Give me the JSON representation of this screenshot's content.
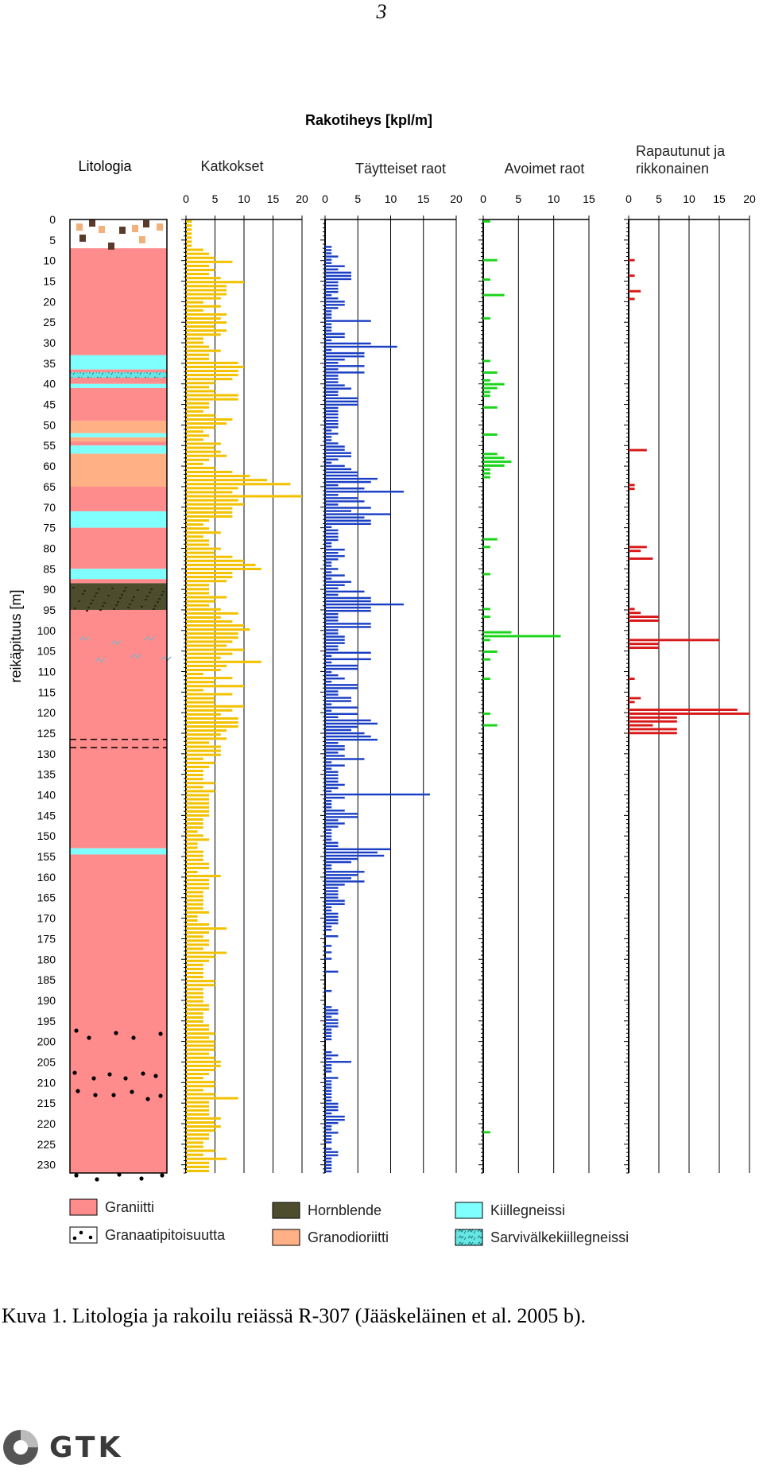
{
  "page_number": "3",
  "caption": "Kuva 1. Litologia ja rakoilu reiässä R-307 (Jääskeläinen et al. 2005 b).",
  "logo_text": "GTK",
  "chart_data": {
    "type": "bar",
    "title": "Rakotiheys [kpl/m]",
    "ylabel": "reikäpituus [m]",
    "ylim": [
      0,
      232
    ],
    "depth_ticks": [
      0,
      5,
      10,
      15,
      20,
      25,
      30,
      35,
      40,
      45,
      50,
      55,
      60,
      65,
      70,
      75,
      80,
      85,
      90,
      95,
      100,
      105,
      110,
      115,
      120,
      125,
      130,
      135,
      140,
      145,
      150,
      155,
      160,
      165,
      170,
      175,
      180,
      185,
      190,
      195,
      200,
      205,
      210,
      215,
      220,
      225,
      230
    ],
    "lithology": {
      "title": "Litologia",
      "layers": [
        {
          "type": "overburden",
          "top": 0,
          "bottom": 7
        },
        {
          "type": "Graniitti",
          "top": 7,
          "bottom": 33
        },
        {
          "type": "Kiillegneissi",
          "top": 33,
          "bottom": 36.5
        },
        {
          "type": "Graniitti",
          "top": 36.5,
          "bottom": 37.2
        },
        {
          "type": "Sarvivälkekiillegneissi",
          "top": 37.2,
          "bottom": 38.5
        },
        {
          "type": "Graniitti",
          "top": 38.5,
          "bottom": 40
        },
        {
          "type": "Kiillegneissi",
          "top": 40,
          "bottom": 41
        },
        {
          "type": "Graniitti",
          "top": 41,
          "bottom": 49
        },
        {
          "type": "Granodioriitti",
          "top": 49,
          "bottom": 52
        },
        {
          "type": "Kiillegneissi",
          "top": 52,
          "bottom": 53
        },
        {
          "type": "Granodioriitti",
          "top": 53,
          "bottom": 54
        },
        {
          "type": "Graniitti",
          "top": 54,
          "bottom": 55
        },
        {
          "type": "Kiillegneissi",
          "top": 55,
          "bottom": 57
        },
        {
          "type": "Granodioriitti",
          "top": 57,
          "bottom": 65
        },
        {
          "type": "Graniitti",
          "top": 65,
          "bottom": 71
        },
        {
          "type": "Kiillegneissi",
          "top": 71,
          "bottom": 75
        },
        {
          "type": "Graniitti",
          "top": 75,
          "bottom": 85
        },
        {
          "type": "Kiillegneissi",
          "top": 85,
          "bottom": 87.5
        },
        {
          "type": "Graniitti",
          "top": 87.5,
          "bottom": 88.5
        },
        {
          "type": "Hornblende",
          "top": 88.5,
          "bottom": 95
        },
        {
          "type": "Graniitti",
          "top": 95,
          "bottom": 153
        },
        {
          "type": "Kiillegneissi",
          "top": 153,
          "bottom": 154.5
        },
        {
          "type": "Graniitti",
          "top": 154.5,
          "bottom": 232
        }
      ]
    },
    "legend": [
      {
        "key": "Graniitti",
        "label": "Graniitti",
        "color": "#ff8c8c"
      },
      {
        "key": "Granaatti",
        "label": "Granaatipitoisuutta",
        "color": "#ffffff"
      },
      {
        "key": "Hornblende",
        "label": "Hornblende",
        "color": "#4d4d2e"
      },
      {
        "key": "Granodioriitti",
        "label": "Granodioriitti",
        "color": "#ffb084"
      },
      {
        "key": "Kiillegneissi",
        "label": "Kiillegneissi",
        "color": "#80ffff"
      },
      {
        "key": "Sarvivälkekiillegneissi",
        "label": "Sarvivälkekiillegneissi",
        "color": "#66e5e5"
      }
    ],
    "series": [
      {
        "name": "Katkokset",
        "color": "#f2c200",
        "xlim": [
          0,
          20
        ],
        "ticks": [
          0,
          5,
          10,
          15,
          20
        ],
        "values": [
          1,
          1,
          1,
          1,
          1,
          1,
          1,
          3,
          4,
          5,
          8,
          4,
          5,
          4,
          6,
          10,
          7,
          7,
          7,
          6,
          3,
          6,
          3,
          7,
          6,
          7,
          5,
          7,
          6,
          3,
          3,
          4,
          6,
          4,
          4,
          9,
          10,
          9,
          9,
          8,
          5,
          4,
          5,
          9,
          9,
          4,
          4,
          3,
          5,
          8,
          7,
          5,
          3,
          4,
          3,
          6,
          5,
          6,
          7,
          4,
          3,
          5,
          8,
          11,
          14,
          18,
          9,
          8,
          20,
          9,
          10,
          8,
          8,
          8,
          4,
          3,
          4,
          6,
          3,
          4,
          4,
          6,
          5,
          8,
          10,
          12,
          13,
          8,
          8,
          7,
          4,
          4,
          4,
          7,
          5,
          4,
          6,
          9,
          6,
          8,
          10,
          11,
          9,
          9,
          8,
          7,
          10,
          8,
          6,
          13,
          7,
          6,
          3,
          8,
          5,
          10,
          3,
          8,
          5,
          5,
          10,
          8,
          6,
          9,
          9,
          9,
          7,
          6,
          7,
          4,
          6,
          6,
          6,
          3,
          5,
          4,
          3,
          3,
          3,
          5,
          3,
          5,
          4,
          4,
          4,
          4,
          4,
          4,
          3,
          3,
          3,
          2,
          3,
          4,
          2,
          2,
          3,
          3,
          3,
          4,
          4,
          2,
          6,
          4,
          4,
          4,
          3,
          3,
          3,
          3,
          3,
          4,
          2,
          2,
          4,
          7,
          4,
          3,
          4,
          4,
          3,
          7,
          5,
          4,
          3,
          3,
          3,
          3,
          5,
          5,
          3,
          3,
          3,
          3,
          4,
          4,
          3,
          3,
          3,
          4,
          4,
          5,
          4,
          5,
          5,
          5,
          4,
          5,
          6,
          6,
          5,
          4,
          3,
          5,
          5,
          3,
          5,
          9,
          4,
          4,
          4,
          4,
          6,
          5,
          6,
          5,
          4,
          4,
          3,
          3,
          5,
          3,
          7,
          4,
          4,
          4
        ]
      },
      {
        "name": "Täytteiset raot",
        "color": "#1a3fc4",
        "xlim": [
          0,
          20
        ],
        "ticks": [
          0,
          5,
          10,
          15,
          20
        ],
        "values": [
          0,
          0,
          0,
          0,
          0,
          0,
          0,
          0,
          1,
          1,
          1,
          2,
          1,
          1,
          3,
          2,
          4,
          4,
          4,
          2,
          2,
          2,
          2,
          1,
          2,
          3,
          3,
          2,
          1,
          1,
          1,
          7,
          1,
          1,
          1,
          3,
          3,
          1,
          7,
          11,
          1,
          6,
          6,
          3,
          2,
          6,
          2,
          6,
          2,
          2,
          2,
          3,
          4,
          2,
          2,
          5,
          5,
          5,
          2,
          2,
          2,
          2,
          2,
          2,
          2,
          1,
          2,
          1,
          1,
          2,
          3,
          3,
          4,
          4,
          2,
          1,
          3,
          4,
          5,
          5,
          8,
          7,
          2,
          6,
          12,
          2,
          5,
          6,
          2,
          7,
          4,
          10,
          6,
          7,
          7,
          1,
          2,
          2,
          2,
          2,
          1,
          1,
          3,
          2,
          3,
          2,
          1,
          1,
          2,
          1,
          3,
          1,
          4,
          3,
          2,
          6,
          2,
          7,
          7,
          12,
          7,
          7,
          2,
          2,
          2,
          7,
          7,
          2,
          2,
          3,
          3,
          3,
          2,
          2,
          7,
          1,
          7,
          1,
          5,
          5,
          1,
          2,
          3,
          1,
          5,
          5,
          2,
          2,
          4,
          4,
          1,
          5,
          1,
          5,
          2,
          7,
          8,
          5,
          4,
          6,
          7,
          8,
          2,
          3,
          3,
          2,
          3,
          6,
          1,
          3,
          1,
          2,
          2,
          2,
          2,
          3,
          2,
          1,
          16,
          3,
          1,
          1,
          1,
          3,
          5,
          5,
          2,
          3,
          2,
          1,
          1,
          1,
          1,
          2,
          2,
          10,
          8,
          9,
          5,
          4,
          1,
          1,
          6,
          5,
          4,
          6,
          3,
          2,
          2,
          2,
          2,
          3,
          3,
          1,
          1,
          2,
          2,
          2,
          2,
          1,
          1,
          0,
          2,
          0,
          0,
          1,
          0,
          1,
          0,
          1,
          0,
          0,
          0,
          2,
          0,
          0,
          0,
          0,
          0,
          1,
          0,
          0,
          0,
          0,
          1,
          2,
          2,
          1,
          2,
          2,
          2,
          1,
          1,
          1,
          1,
          0,
          0,
          0,
          1,
          2,
          1,
          4,
          1,
          1,
          1,
          0,
          2,
          1,
          1,
          1,
          1,
          1,
          1,
          1,
          2,
          2,
          2,
          1,
          3,
          3,
          2,
          1,
          1,
          2,
          1,
          1,
          1,
          0,
          1,
          2,
          2,
          1,
          1,
          1,
          1,
          1
        ]
      },
      {
        "name": "Avoimet raot",
        "color": "#19d419",
        "xlim": [
          0,
          15
        ],
        "ticks": [
          0,
          5,
          10,
          15
        ],
        "values": [
          1,
          0,
          0,
          0,
          0,
          0,
          0,
          0,
          0,
          0,
          2,
          0,
          0,
          0,
          0,
          1,
          0,
          0,
          0,
          3,
          0,
          0,
          0,
          0,
          0,
          1,
          0,
          0,
          0,
          0,
          0,
          0,
          0,
          0,
          0,
          0,
          1,
          0,
          0,
          2,
          0,
          1,
          3,
          2,
          1,
          1,
          0,
          0,
          2,
          0,
          0,
          0,
          0,
          0,
          0,
          2,
          0,
          0,
          0,
          0,
          2,
          3,
          4,
          3,
          1,
          1,
          1,
          0,
          0,
          0,
          0,
          0,
          0,
          0,
          0,
          0,
          0,
          0,
          0,
          0,
          0,
          0,
          2,
          0,
          1,
          0,
          0,
          0,
          0,
          0,
          0,
          1,
          0,
          0,
          0,
          0,
          0,
          0,
          0,
          0,
          1,
          0,
          1,
          0,
          0,
          0,
          4,
          11,
          1,
          0,
          0,
          2,
          0,
          1,
          0,
          0,
          0,
          0,
          1,
          0,
          0,
          0,
          0,
          0,
          0,
          0,
          0,
          1,
          0,
          0,
          2,
          0,
          0,
          0,
          0,
          0,
          0,
          0,
          0,
          0,
          0,
          0,
          0,
          0,
          0,
          0,
          0,
          0,
          0,
          0,
          0,
          0,
          0,
          0,
          0,
          0,
          0,
          0,
          0,
          0,
          0,
          0,
          0,
          0,
          0,
          0,
          0,
          0,
          0,
          0,
          0,
          0,
          0,
          0,
          0,
          0,
          0,
          0,
          0,
          0,
          0,
          0,
          0,
          0,
          0,
          0,
          0,
          0,
          0,
          0,
          0,
          0,
          0,
          0,
          0,
          0,
          0,
          0,
          0,
          0,
          0,
          0,
          0,
          0,
          0,
          0,
          0,
          0,
          0,
          0,
          0,
          0,
          0,
          0,
          0,
          0,
          0,
          0,
          0,
          0,
          0,
          0,
          0,
          0,
          0,
          0,
          0,
          0,
          0,
          0,
          0,
          0,
          0,
          0,
          0,
          1,
          0,
          0,
          0,
          0,
          0,
          0,
          0,
          0,
          0,
          0
        ]
      },
      {
        "name": "Rapautunut ja rikkonainen",
        "color": "#d81818",
        "xlim": [
          0,
          20
        ],
        "ticks": [
          0,
          5,
          10,
          15,
          20
        ],
        "values": [
          0,
          0,
          0,
          0,
          0,
          0,
          0,
          0,
          0,
          0,
          1,
          0,
          0,
          0,
          1,
          0,
          0,
          0,
          2,
          0,
          1,
          0,
          0,
          0,
          0,
          0,
          0,
          0,
          0,
          0,
          0,
          0,
          0,
          0,
          0,
          0,
          0,
          0,
          0,
          0,
          0,
          0,
          0,
          0,
          0,
          0,
          0,
          0,
          0,
          0,
          0,
          0,
          0,
          0,
          0,
          0,
          0,
          0,
          0,
          3,
          0,
          0,
          0,
          0,
          0,
          0,
          0,
          0,
          1,
          1,
          0,
          0,
          0,
          0,
          0,
          0,
          0,
          0,
          0,
          0,
          0,
          0,
          0,
          0,
          3,
          2,
          0,
          4,
          0,
          0,
          0,
          0,
          0,
          0,
          0,
          0,
          0,
          0,
          0,
          0,
          1,
          2,
          5,
          5,
          0,
          0,
          0,
          0,
          15,
          5,
          5,
          0,
          0,
          0,
          0,
          0,
          0,
          0,
          1,
          0,
          0,
          0,
          0,
          2,
          1,
          0,
          18,
          20,
          8,
          8,
          4,
          8,
          8,
          0,
          0,
          0,
          0,
          0,
          0,
          0,
          0,
          0,
          0,
          0,
          0,
          0,
          0,
          0,
          0,
          0,
          0,
          0,
          0,
          0,
          0,
          0,
          0,
          0,
          0,
          0,
          0,
          0,
          0,
          0,
          0,
          0,
          0,
          0,
          0,
          0,
          0,
          0,
          0,
          0,
          0,
          0,
          0,
          0,
          0,
          0,
          0,
          0,
          0,
          0,
          0,
          0,
          0,
          0,
          0,
          0,
          0,
          0,
          0,
          0,
          0,
          0,
          0,
          0,
          0,
          0,
          0,
          0,
          0,
          0,
          0,
          0,
          0,
          0,
          0,
          0,
          0,
          0,
          0,
          0,
          0,
          0,
          0,
          0,
          0,
          0,
          0,
          0,
          0,
          0,
          0,
          0,
          0,
          0,
          0,
          0,
          0,
          0,
          0,
          0,
          0,
          0,
          0,
          0,
          0,
          0,
          0,
          0,
          0,
          0,
          0,
          0
        ]
      }
    ],
    "series_titles": {
      "Katkokset": "Katkokset",
      "Täytteiset raot": "Täytteiset raot",
      "Avoimet raot": "Avoimet raot",
      "Rapautunut ja rikkonainen": [
        "Rapautunut ja",
        "rikkonainen"
      ]
    }
  }
}
